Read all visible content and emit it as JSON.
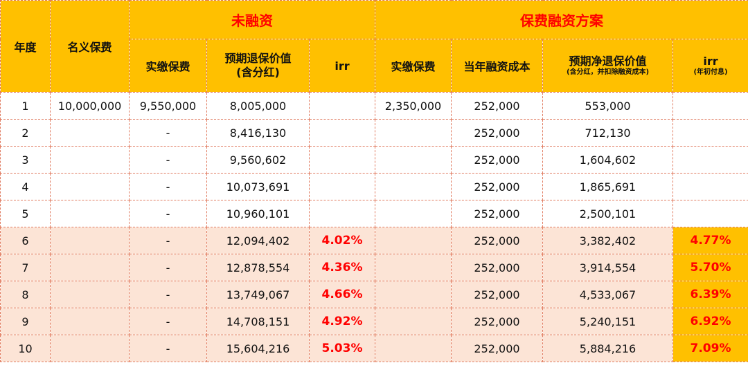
{
  "header": {
    "year": "年度",
    "nominal_premium": "名义保费",
    "group_no_financing": "未融资",
    "group_financing": "保费融资方案",
    "actual_premium": "实缴保费",
    "expected_surrender_l1": "预期退保价值",
    "expected_surrender_l2": "(含分红)",
    "irr": "irr",
    "actual_premium2": "实缴保费",
    "annual_cost": "当年融资成本",
    "net_surrender_l1": "预期净退保价值",
    "net_surrender_l2": "(含分红，并扣除融资成本)",
    "irr2": "irr",
    "irr2_note": "(年初付息)"
  },
  "rows": [
    {
      "year": "1",
      "nominal": "10,000,000",
      "paid": "9,550,000",
      "value": "8,005,000",
      "irr": "",
      "paid2": "2,350,000",
      "cost": "252,000",
      "net": "553,000",
      "irr2": ""
    },
    {
      "year": "2",
      "nominal": "",
      "paid": "-",
      "value": "8,416,130",
      "irr": "",
      "paid2": "",
      "cost": "252,000",
      "net": "712,130",
      "irr2": ""
    },
    {
      "year": "3",
      "nominal": "",
      "paid": "-",
      "value": "9,560,602",
      "irr": "",
      "paid2": "",
      "cost": "252,000",
      "net": "1,604,602",
      "irr2": ""
    },
    {
      "year": "4",
      "nominal": "",
      "paid": "-",
      "value": "10,073,691",
      "irr": "",
      "paid2": "",
      "cost": "252,000",
      "net": "1,865,691",
      "irr2": ""
    },
    {
      "year": "5",
      "nominal": "",
      "paid": "-",
      "value": "10,960,101",
      "irr": "",
      "paid2": "",
      "cost": "252,000",
      "net": "2,500,101",
      "irr2": ""
    },
    {
      "year": "6",
      "nominal": "",
      "paid": "-",
      "value": "12,094,402",
      "irr": "4.02%",
      "paid2": "",
      "cost": "252,000",
      "net": "3,382,402",
      "irr2": "4.77%"
    },
    {
      "year": "7",
      "nominal": "",
      "paid": "-",
      "value": "12,878,554",
      "irr": "4.36%",
      "paid2": "",
      "cost": "252,000",
      "net": "3,914,554",
      "irr2": "5.70%"
    },
    {
      "year": "8",
      "nominal": "",
      "paid": "-",
      "value": "13,749,067",
      "irr": "4.66%",
      "paid2": "",
      "cost": "252,000",
      "net": "4,533,067",
      "irr2": "6.39%"
    },
    {
      "year": "9",
      "nominal": "",
      "paid": "-",
      "value": "14,708,151",
      "irr": "4.92%",
      "paid2": "",
      "cost": "252,000",
      "net": "5,240,151",
      "irr2": "6.92%"
    },
    {
      "year": "10",
      "nominal": "",
      "paid": "-",
      "value": "15,604,216",
      "irr": "5.03%",
      "paid2": "",
      "cost": "252,000",
      "net": "5,884,216",
      "irr2": "7.09%"
    }
  ]
}
